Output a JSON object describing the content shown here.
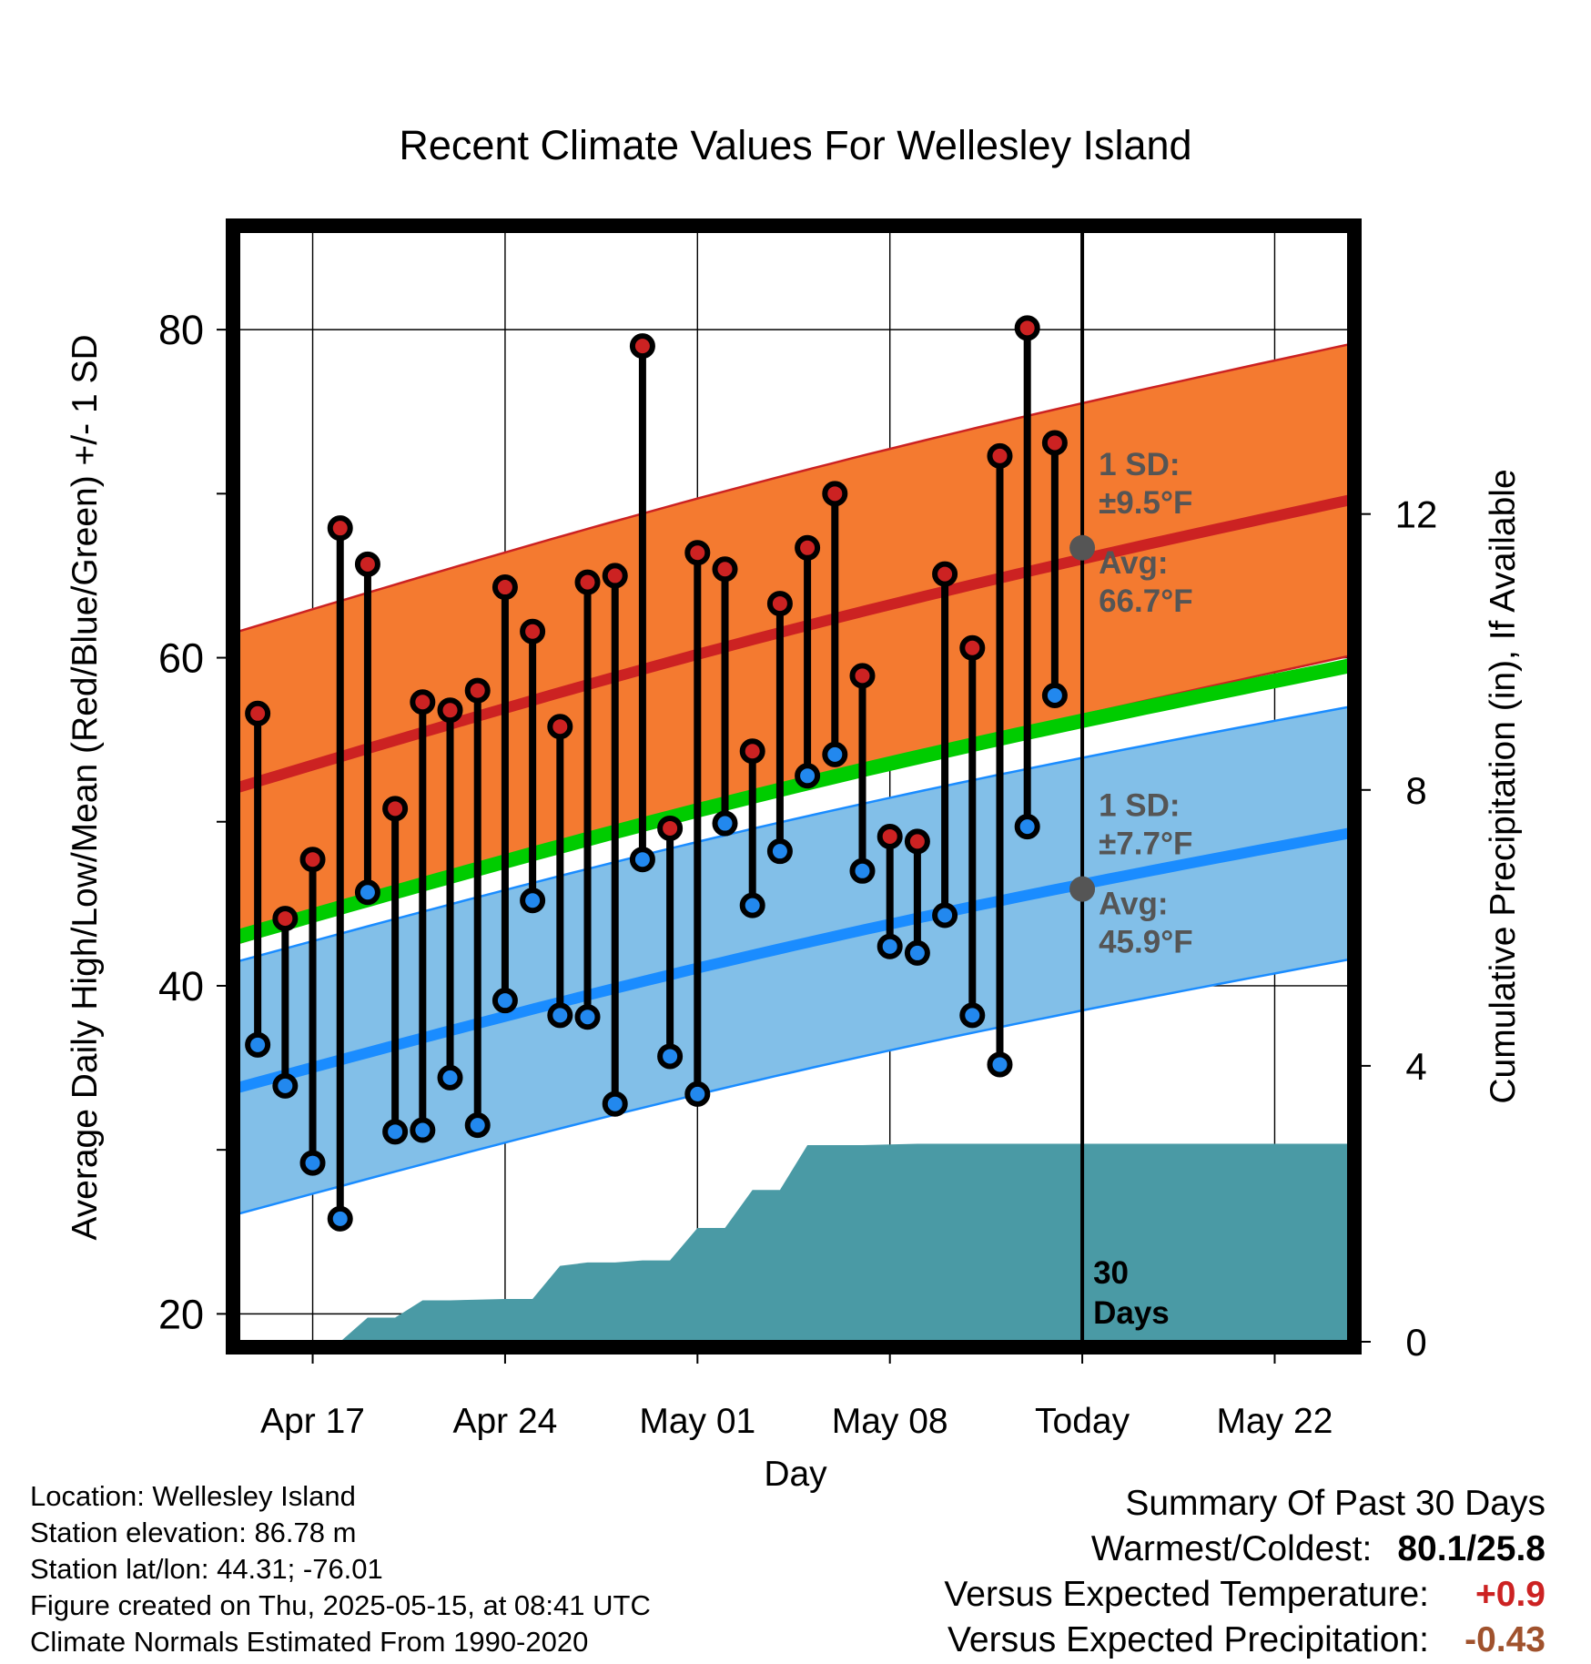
{
  "chart_data": {
    "type": "line",
    "title": "Recent Climate Values For Wellesley Island",
    "xlabel": "Day",
    "ylabel": "Average Daily High/Low/Mean (Red/Blue/Green) +/- 1 SD",
    "y2label": "Cumulative Precipitation (in), If Available",
    "ylim": [
      18.3,
      86.0
    ],
    "y_ticks": [
      20,
      40,
      60,
      80
    ],
    "y_minor_ticks": [
      30,
      50,
      70
    ],
    "y2lim": [
      0,
      16.1
    ],
    "y2_ticks": [
      0,
      4,
      8,
      12
    ],
    "x_tick_labels": [
      "Apr 17",
      "Apr 24",
      "May 01",
      "May 08",
      "Today",
      "May 22"
    ],
    "x_tick_days": [
      2,
      9,
      16,
      23,
      30,
      37
    ],
    "x_days_range": [
      -0.7,
      39.7
    ],
    "days": [
      "Apr 15",
      "Apr 16",
      "Apr 17",
      "Apr 18",
      "Apr 19",
      "Apr 20",
      "Apr 21",
      "Apr 22",
      "Apr 23",
      "Apr 24",
      "Apr 25",
      "Apr 26",
      "Apr 27",
      "Apr 28",
      "Apr 29",
      "Apr 30",
      "May 01",
      "May 02",
      "May 03",
      "May 04",
      "May 05",
      "May 06",
      "May 07",
      "May 08",
      "May 09",
      "May 10",
      "May 11",
      "May 12",
      "May 13",
      "May 14"
    ],
    "series": [
      {
        "name": "High",
        "color": "#cc2222",
        "values": [
          56.6,
          44.1,
          47.7,
          67.9,
          65.7,
          50.8,
          57.3,
          56.8,
          58.0,
          64.3,
          61.6,
          55.8,
          64.6,
          65.0,
          79.0,
          49.6,
          66.4,
          65.4,
          54.3,
          63.3,
          66.7,
          70.0,
          58.9,
          49.1,
          48.8,
          65.1,
          60.6,
          72.3,
          80.1,
          73.1
        ]
      },
      {
        "name": "Low",
        "color": "#2288ee",
        "values": [
          36.4,
          33.9,
          29.2,
          25.8,
          45.7,
          31.1,
          31.2,
          34.4,
          31.5,
          39.1,
          45.2,
          38.2,
          38.1,
          32.8,
          47.7,
          35.7,
          33.4,
          49.9,
          44.9,
          48.2,
          52.8,
          54.1,
          47.0,
          42.4,
          42.0,
          44.3,
          38.2,
          35.2,
          49.7,
          57.7
        ]
      }
    ],
    "normal_high": {
      "start": 52.1,
      "end": 69.6,
      "sd": 9.5
    },
    "normal_low": {
      "start": 33.8,
      "end": 49.3,
      "sd": 7.7
    },
    "normal_mean": {
      "start": 43.0,
      "end": 59.5
    },
    "today_marker": {
      "day": 30,
      "high_avg": 66.7,
      "low_avg": 45.9
    },
    "annotations": {
      "high_sd_label": "1 SD:",
      "high_sd_value": "±9.5°F",
      "high_avg_label": "Avg:",
      "high_avg_value": "66.7°F",
      "low_sd_label": "1 SD:",
      "low_sd_value": "±7.7°F",
      "low_avg_label": "Avg:",
      "low_avg_value": "45.9°F",
      "days_number": "30",
      "days_word": "Days"
    },
    "precipitation": {
      "days": [
        3,
        4,
        5,
        6,
        7,
        8,
        9,
        10,
        11,
        12,
        13,
        14,
        15,
        16,
        17,
        18,
        19,
        20,
        21,
        22,
        23,
        24,
        25,
        26,
        27,
        28,
        29,
        30,
        39.7
      ],
      "values": [
        0.0,
        0.35,
        0.35,
        0.6,
        0.6,
        0.61,
        0.62,
        0.62,
        1.1,
        1.15,
        1.15,
        1.18,
        1.18,
        1.65,
        1.65,
        2.2,
        2.2,
        2.85,
        2.85,
        2.85,
        2.86,
        2.87,
        2.87,
        2.87,
        2.87,
        2.87,
        2.87,
        2.87,
        2.87
      ]
    },
    "colors": {
      "high_band": "#f47a30",
      "high_line": "#cc2222",
      "low_band": "#82bfe8",
      "low_line": "#1a8cff",
      "mean_line": "#00cc00",
      "precip_fill": "#4a9aa5",
      "marker_edge": "#000000",
      "avg_dot": "#555555",
      "annotation_text": "#555555"
    }
  },
  "info": {
    "location": "Location: Wellesley Island",
    "elevation": "Station elevation: 86.78 m",
    "latlon": "Station lat/lon: 44.31; -76.01",
    "created": "Figure created on Thu, 2025-05-15, at 08:41 UTC",
    "normals": "Climate Normals Estimated From 1990-2020"
  },
  "summary": {
    "title": "Summary Of Past 30 Days",
    "warm_cold_label": "Warmest/Coldest:",
    "warm_cold_value": "80.1/25.8",
    "temp_label": "Versus Expected Temperature:",
    "temp_value": "+0.9",
    "temp_color": "#cc2222",
    "precip_label": "Versus Expected Precipitation:",
    "precip_value": "-0.43",
    "precip_color": "#a0522d"
  }
}
